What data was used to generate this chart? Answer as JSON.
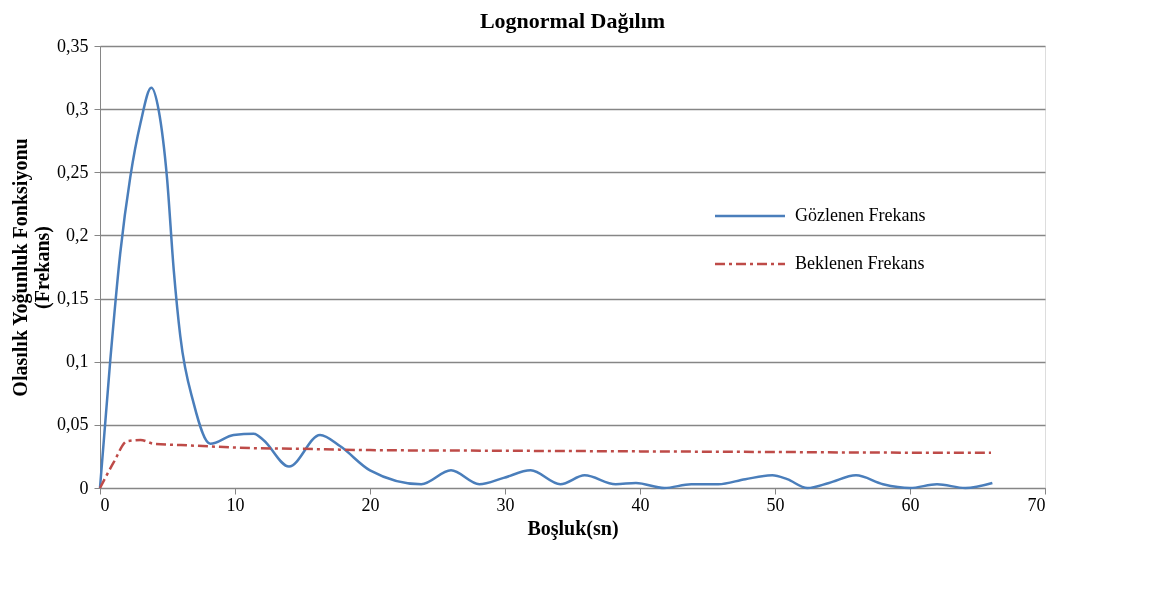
{
  "chart_data": {
    "type": "line",
    "title": "Lognormal Dağılım",
    "xlabel": "Boşluk(sn)",
    "ylabel": "Olasılık Yoğunluk Fonksiyonu\n(Frekans)",
    "xlim": [
      0,
      70
    ],
    "xticks": [
      0,
      10,
      20,
      30,
      40,
      50,
      60,
      70
    ],
    "ylim": [
      0,
      0.35
    ],
    "yticks": [
      {
        "value": 0,
        "label": "0"
      },
      {
        "value": 0.05,
        "label": "0,05"
      },
      {
        "value": 0.1,
        "label": "0,1"
      },
      {
        "value": 0.15,
        "label": "0,15"
      },
      {
        "value": 0.2,
        "label": "0,2"
      },
      {
        "value": 0.25,
        "label": "0,25"
      },
      {
        "value": 0.3,
        "label": "0,3"
      },
      {
        "value": 0.35,
        "label": "0,35"
      }
    ],
    "grid": "y",
    "legend": "right",
    "series": [
      {
        "name": "Gözlenen Frekans",
        "color": "#4a7ebb",
        "line_style": "solid",
        "x": [
          0,
          0.76,
          1.5,
          2.24,
          3.0,
          3.8,
          4.35,
          4.96,
          5.46,
          5.95,
          6.94,
          8.17,
          9.9,
          11.4,
          12.1,
          14.0,
          16.3,
          17.8,
          20.0,
          23.8,
          26.0,
          28.1,
          29.9,
          31.9,
          34.1,
          35.9,
          38.2,
          39.7,
          41.8,
          43.8,
          45.8,
          47.8,
          49.8,
          50.9,
          52.4,
          54.0,
          56.0,
          58.0,
          60.0,
          62.0,
          64.1,
          66.1
        ],
        "values": [
          0,
          0.101,
          0.186,
          0.246,
          0.289,
          0.317,
          0.299,
          0.246,
          0.173,
          0.12,
          0.067,
          0.035,
          0.042,
          0.043,
          0.038,
          0.017,
          0.042,
          0.033,
          0.014,
          0.003,
          0.014,
          0.003,
          0.008,
          0.014,
          0.003,
          0.01,
          0.003,
          0.004,
          0,
          0.003,
          0.003,
          0.007,
          0.01,
          0.007,
          0,
          0.004,
          0.01,
          0.003,
          0,
          0.003,
          0,
          0.004
        ]
      },
      {
        "name": "Beklenen Frekans",
        "color": "#be4b48",
        "line_style": "dashed",
        "x": [
          0,
          1,
          2,
          3,
          4,
          6,
          8,
          10,
          15,
          20,
          30,
          40,
          50,
          60,
          66
        ],
        "values": [
          0,
          0.02,
          0.037,
          0.038,
          0.035,
          0.034,
          0.033,
          0.032,
          0.031,
          0.03,
          0.0295,
          0.029,
          0.0285,
          0.028,
          0.028
        ]
      }
    ]
  }
}
